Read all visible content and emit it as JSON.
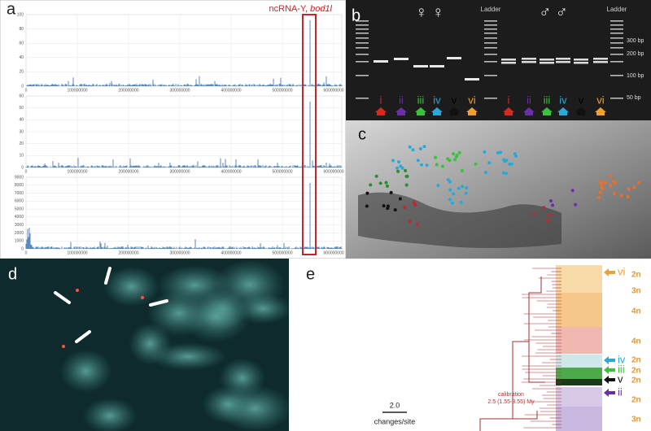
{
  "panel_a": {
    "label": "a",
    "annotation": "ncRNA-Y, ",
    "annotation_gene": "bod1l",
    "plots": [
      {
        "yticks": [
          "100",
          "80",
          "60",
          "40",
          "20",
          "0"
        ],
        "xticks": [
          "0",
          "100000000",
          "200000000",
          "300000000",
          "400000000",
          "500000000",
          "600000000"
        ]
      },
      {
        "yticks": [
          "60",
          "50",
          "40",
          "30",
          "20",
          "10",
          "0"
        ],
        "xticks": [
          "0",
          "100000000",
          "200000000",
          "300000000",
          "400000000",
          "500000000",
          "600000000"
        ]
      },
      {
        "yticks": [
          "9000",
          "8000",
          "7000",
          "6000",
          "5000",
          "4000",
          "3000",
          "2000",
          "1000",
          "0"
        ],
        "xticks": [
          "0",
          "100000000",
          "200000000",
          "300000000",
          "400000000",
          "500000000",
          "600000000"
        ]
      }
    ]
  },
  "panel_b": {
    "label": "b",
    "female": "♀ ♀",
    "male": "♂ ♂",
    "ladders": [
      "Ladder",
      "Ladder"
    ],
    "sizes": [
      "300 bp",
      "200 bp",
      "100 bp",
      "50 bp"
    ],
    "female_lanes": [
      "i",
      "ii",
      "iii",
      "iv",
      "v",
      "vi"
    ],
    "male_lanes": [
      "i",
      "ii",
      "iii",
      "iv",
      "v",
      "vi"
    ]
  },
  "panel_c": {
    "label": "c"
  },
  "panel_d": {
    "label": "d"
  },
  "panel_e": {
    "label": "e",
    "markers": [
      "vi",
      "iv",
      "iii",
      "v",
      "ii"
    ],
    "ploidy": [
      "2n",
      "3n",
      "4n",
      "4n",
      "2n",
      "2n",
      "2n",
      "2n",
      "3n"
    ],
    "scale_value": "2.0",
    "scale_unit": "changes/site",
    "calibration": "calibration",
    "calibration_range": "2.5 (1.55-3.55) My"
  }
}
